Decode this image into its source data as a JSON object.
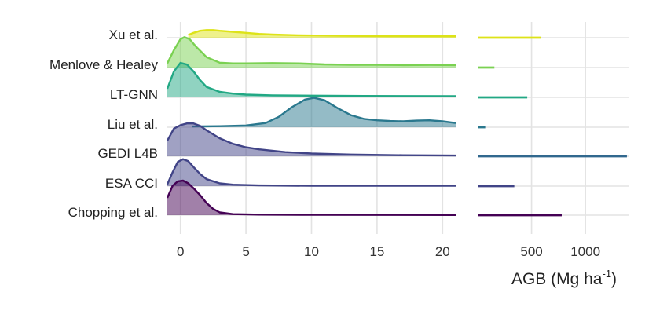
{
  "chart_data": [
    {
      "type": "ridgeline",
      "xlabel": "",
      "xlim": [
        -1,
        21
      ],
      "xticks": [
        0,
        5,
        10,
        15,
        20
      ],
      "grid": true,
      "categories": [
        "Xu et al.",
        "Menlove & Healey",
        "LT-GNN",
        "Liu et al.",
        "GEDI L4B",
        "ESA CCI",
        "Chopping et al."
      ],
      "series": [
        {
          "name": "Xu et al.",
          "color": "#dde318",
          "range": [
            0.6,
            21
          ],
          "density": [
            [
              0.6,
              0.08
            ],
            [
              1,
              0.14
            ],
            [
              1.5,
              0.2
            ],
            [
              2,
              0.22
            ],
            [
              2.5,
              0.22
            ],
            [
              3,
              0.2
            ],
            [
              4,
              0.17
            ],
            [
              5,
              0.14
            ],
            [
              6,
              0.11
            ],
            [
              7,
              0.09
            ],
            [
              9,
              0.07
            ],
            [
              12,
              0.055
            ],
            [
              16,
              0.045
            ],
            [
              21,
              0.04
            ]
          ]
        },
        {
          "name": "Menlove & Healey",
          "color": "#7ad151",
          "range": [
            -1,
            21
          ],
          "density": [
            [
              -1,
              0.12
            ],
            [
              -0.5,
              0.5
            ],
            [
              0,
              0.82
            ],
            [
              0.3,
              0.88
            ],
            [
              0.7,
              0.82
            ],
            [
              1.2,
              0.6
            ],
            [
              2,
              0.3
            ],
            [
              3,
              0.14
            ],
            [
              4,
              0.12
            ],
            [
              5,
              0.12
            ],
            [
              7,
              0.13
            ],
            [
              9,
              0.12
            ],
            [
              11,
              0.09
            ],
            [
              13,
              0.08
            ],
            [
              15,
              0.08
            ],
            [
              17,
              0.07
            ],
            [
              19,
              0.075
            ],
            [
              21,
              0.07
            ]
          ]
        },
        {
          "name": "LT-GNN",
          "color": "#22a884",
          "range": [
            -1,
            21
          ],
          "density": [
            [
              -1,
              0.25
            ],
            [
              -0.5,
              0.75
            ],
            [
              0,
              1.0
            ],
            [
              0.5,
              0.95
            ],
            [
              1,
              0.75
            ],
            [
              1.5,
              0.5
            ],
            [
              2,
              0.3
            ],
            [
              3,
              0.16
            ],
            [
              4,
              0.11
            ],
            [
              5,
              0.08
            ],
            [
              7,
              0.06
            ],
            [
              10,
              0.05
            ],
            [
              14,
              0.04
            ],
            [
              21,
              0.035
            ]
          ]
        },
        {
          "name": "Liu et al.",
          "color": "#2a788e",
          "range": [
            0.9,
            21
          ],
          "density": [
            [
              0.9,
              0.02
            ],
            [
              3,
              0.03
            ],
            [
              5,
              0.05
            ],
            [
              6.5,
              0.12
            ],
            [
              7.5,
              0.3
            ],
            [
              8.5,
              0.58
            ],
            [
              9.5,
              0.8
            ],
            [
              10.2,
              0.85
            ],
            [
              11,
              0.78
            ],
            [
              12,
              0.55
            ],
            [
              13,
              0.35
            ],
            [
              14,
              0.24
            ],
            [
              15,
              0.2
            ],
            [
              16,
              0.18
            ],
            [
              17,
              0.17
            ],
            [
              18,
              0.19
            ],
            [
              19,
              0.2
            ],
            [
              20,
              0.17
            ],
            [
              21,
              0.12
            ]
          ]
        },
        {
          "name": "GEDI L4B",
          "color": "#414487",
          "range": [
            -1,
            21
          ],
          "density": [
            [
              -1,
              0.45
            ],
            [
              -0.5,
              0.8
            ],
            [
              0,
              0.9
            ],
            [
              0.5,
              0.95
            ],
            [
              1,
              0.95
            ],
            [
              1.5,
              0.88
            ],
            [
              2,
              0.75
            ],
            [
              3,
              0.52
            ],
            [
              4,
              0.36
            ],
            [
              5,
              0.26
            ],
            [
              6,
              0.2
            ],
            [
              8,
              0.12
            ],
            [
              10,
              0.08
            ],
            [
              13,
              0.05
            ],
            [
              17,
              0.03
            ],
            [
              21,
              0.02
            ]
          ]
        },
        {
          "name": "ESA CCI",
          "color": "#414487",
          "range": [
            -1,
            21
          ],
          "density": [
            [
              -1,
              0.05
            ],
            [
              -0.6,
              0.4
            ],
            [
              -0.2,
              0.7
            ],
            [
              0.2,
              0.78
            ],
            [
              0.6,
              0.72
            ],
            [
              1,
              0.55
            ],
            [
              1.5,
              0.35
            ],
            [
              2,
              0.2
            ],
            [
              3,
              0.08
            ],
            [
              4,
              0.04
            ],
            [
              6,
              0.02
            ],
            [
              10,
              0.01
            ],
            [
              21,
              0.01
            ]
          ]
        },
        {
          "name": "Chopping et al.",
          "color": "#440154",
          "range": [
            -1,
            21
          ],
          "density": [
            [
              -1,
              0.5
            ],
            [
              -0.6,
              0.85
            ],
            [
              -0.2,
              0.98
            ],
            [
              0.2,
              1.0
            ],
            [
              0.6,
              0.92
            ],
            [
              1,
              0.78
            ],
            [
              1.5,
              0.58
            ],
            [
              2,
              0.35
            ],
            [
              2.5,
              0.18
            ],
            [
              3,
              0.08
            ],
            [
              4,
              0.03
            ],
            [
              6,
              0.015
            ],
            [
              10,
              0.008
            ],
            [
              21,
              0.005
            ]
          ]
        }
      ]
    },
    {
      "type": "range",
      "xlabel_main": "AGB (Mg ha",
      "xlabel_sup": "-1",
      "xlabel_close": ")",
      "xlim": [
        0,
        1400
      ],
      "xticks": [
        500,
        1000
      ],
      "grid": true,
      "series": [
        {
          "name": "Xu et al.",
          "color": "#dde318",
          "range": [
            0,
            590
          ]
        },
        {
          "name": "Menlove & Healey",
          "color": "#7ad151",
          "range": [
            0,
            155
          ]
        },
        {
          "name": "LT-GNN",
          "color": "#22a884",
          "range": [
            0,
            460
          ]
        },
        {
          "name": "Liu et al.",
          "color": "#2a788e",
          "range": [
            0,
            70
          ]
        },
        {
          "name": "GEDI L4B",
          "color": "#31688e",
          "range": [
            0,
            1385
          ]
        },
        {
          "name": "ESA CCI",
          "color": "#414487",
          "range": [
            0,
            340
          ]
        },
        {
          "name": "Chopping et al.",
          "color": "#440154",
          "range": [
            0,
            780
          ]
        }
      ]
    }
  ]
}
